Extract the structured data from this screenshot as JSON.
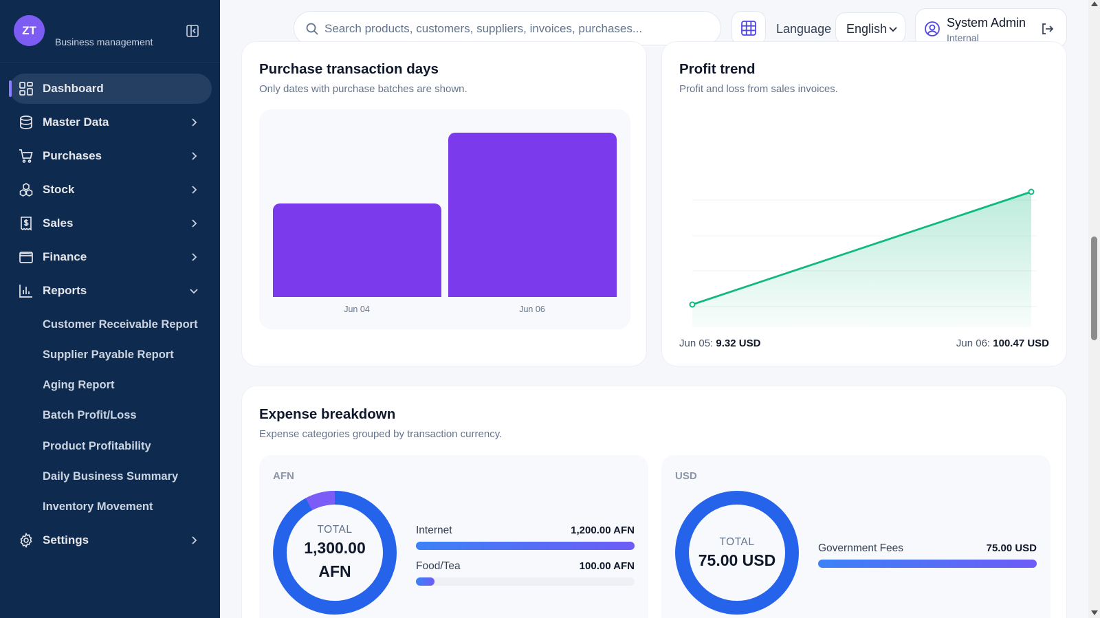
{
  "brand": {
    "logo_text": "ZT",
    "subtitle": "Business management"
  },
  "sidebar": {
    "items": [
      {
        "label": "Dashboard",
        "icon": "dashboard-icon"
      },
      {
        "label": "Master Data",
        "icon": "database-icon"
      },
      {
        "label": "Purchases",
        "icon": "cart-icon"
      },
      {
        "label": "Stock",
        "icon": "boxes-icon"
      },
      {
        "label": "Sales",
        "icon": "receipt-icon"
      },
      {
        "label": "Finance",
        "icon": "wallet-icon"
      },
      {
        "label": "Reports",
        "icon": "bar-chart-icon"
      },
      {
        "label": "Settings",
        "icon": "gear-icon"
      }
    ],
    "reports_sub": [
      "Customer Receivable Report",
      "Supplier Payable Report",
      "Aging Report",
      "Batch Profit/Loss",
      "Product Profitability",
      "Daily Business Summary",
      "Inventory Movement"
    ]
  },
  "header": {
    "search_placeholder": "Search products, customers, suppliers, invoices, purchases...",
    "language_label": "Language",
    "language_value": "English",
    "user_name": "System Admin",
    "user_role": "Internal"
  },
  "purchase_card": {
    "title": "Purchase transaction days",
    "subtitle": "Only dates with purchase batches are shown."
  },
  "profit_card": {
    "title": "Profit trend",
    "subtitle": "Profit and loss from sales invoices.",
    "start_date": "Jun 05:",
    "start_value": "9.32 USD",
    "end_date": "Jun 06:",
    "end_value": "100.47 USD"
  },
  "expense_card": {
    "title": "Expense breakdown",
    "subtitle": "Expense categories grouped by transaction currency.",
    "afn": {
      "currency": "AFN",
      "total_caption": "TOTAL",
      "total_line1": "1,300.00",
      "total_line2": "AFN",
      "rows": [
        {
          "name": "Internet",
          "amount": "1,200.00 AFN",
          "value": 1200
        },
        {
          "name": "Food/Tea",
          "amount": "100.00 AFN",
          "value": 100
        }
      ]
    },
    "usd": {
      "currency": "USD",
      "total_caption": "TOTAL",
      "total": "75.00 USD",
      "rows": [
        {
          "name": "Government Fees",
          "amount": "75.00 USD",
          "value": 75
        }
      ]
    }
  },
  "chart_data": [
    {
      "type": "bar",
      "categories": [
        "Jun 04",
        "Jun 06"
      ],
      "values": [
        4,
        7
      ]
    },
    {
      "type": "area",
      "x": [
        "Jun 05",
        "Jun 06"
      ],
      "values": [
        9.32,
        100.47
      ]
    }
  ],
  "colors": {
    "sidebar_bg": "#0f2a4f",
    "accent": "#7c3aed",
    "profit_line": "#10b981",
    "donut_primary": "#2563eb",
    "donut_secondary": "#7c5cf6"
  }
}
